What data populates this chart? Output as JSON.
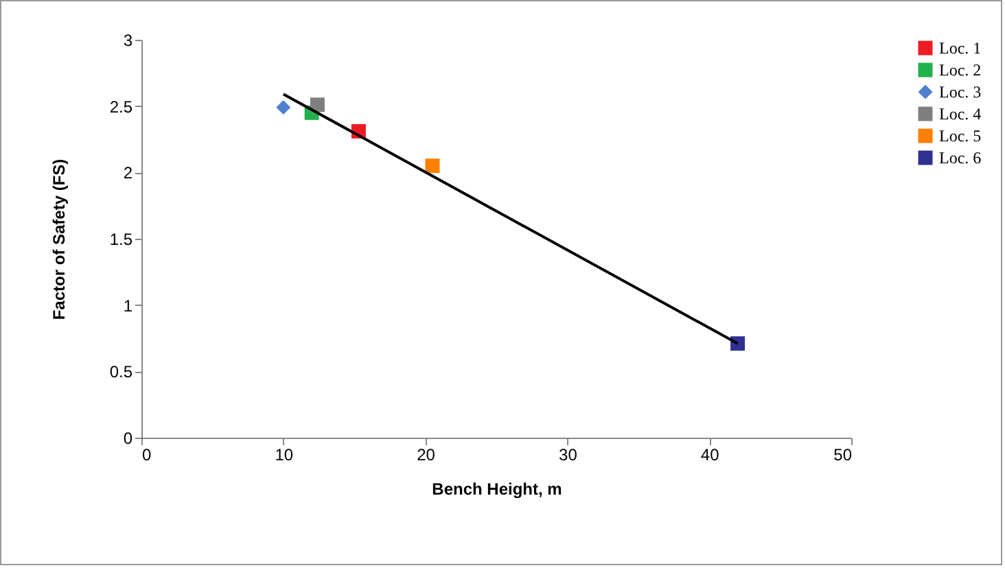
{
  "chart_data": {
    "type": "scatter",
    "xlabel": "Bench Height, m",
    "ylabel": "Factor of Safety (FS)",
    "xlim": [
      0,
      50
    ],
    "xticks": [
      0,
      10,
      20,
      30,
      40,
      50
    ],
    "ylim": [
      0,
      3
    ],
    "yticks": [
      0,
      0.5,
      1,
      1.5,
      2,
      2.5,
      3
    ],
    "grid": false,
    "legend": "right",
    "marker": "square",
    "series": [
      {
        "name": "Loc. 1",
        "color": "#ed1c24",
        "x": [
          15.3
        ],
        "values": [
          2.31
        ]
      },
      {
        "name": "Loc. 2",
        "color": "#22b14c",
        "x": [
          12.0
        ],
        "values": [
          2.45
        ]
      },
      {
        "name": "Loc. 3",
        "color": "#4f7fd0",
        "x": [
          10.0
        ],
        "values": [
          2.49
        ],
        "marker": "diamond"
      },
      {
        "name": "Loc. 4",
        "color": "#7f7f7f",
        "x": [
          12.4
        ],
        "values": [
          2.51
        ]
      },
      {
        "name": "Loc. 5",
        "color": "#ff7f00",
        "x": [
          20.5
        ],
        "values": [
          2.05
        ]
      },
      {
        "name": "Loc. 6",
        "color": "#2e3192",
        "x": [
          42.0
        ],
        "values": [
          0.71
        ]
      },
      {
        "type": "line",
        "color": "#000000",
        "x": [
          10,
          42
        ],
        "values": [
          2.59,
          0.71
        ],
        "marker": "none"
      }
    ]
  }
}
